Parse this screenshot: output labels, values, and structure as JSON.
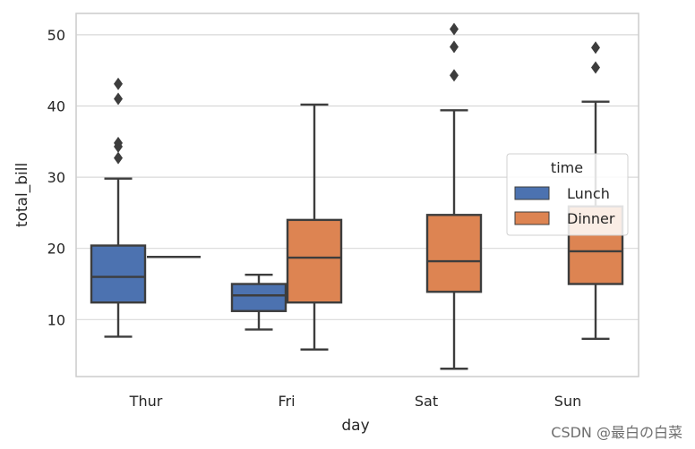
{
  "chart_data": {
    "type": "box",
    "xlabel": "day",
    "ylabel": "total_bill",
    "categories": [
      "Thur",
      "Fri",
      "Sat",
      "Sun"
    ],
    "ylim": [
      2,
      53
    ],
    "yticks": [
      10,
      20,
      30,
      40,
      50
    ],
    "grid": true,
    "legend": {
      "title": "time",
      "placement": "center-right"
    },
    "series": [
      {
        "name": "Lunch",
        "color": "#4c72b0",
        "boxes": [
          {
            "category": "Thur",
            "whisker_low": 7.6,
            "q1": 12.4,
            "median": 16.0,
            "q3": 20.4,
            "whisker_high": 29.8,
            "outliers": [
              32.7,
              34.3,
              34.8,
              41.0,
              43.1
            ]
          },
          {
            "category": "Fri",
            "whisker_low": 8.6,
            "q1": 11.2,
            "median": 13.4,
            "q3": 15.0,
            "whisker_high": 16.3,
            "outliers": []
          }
        ]
      },
      {
        "name": "Dinner",
        "color": "#dd8452",
        "boxes": [
          {
            "category": "Thur",
            "whisker_low": 18.8,
            "q1": 18.8,
            "median": 18.8,
            "q3": 18.8,
            "whisker_high": 18.8,
            "outliers": []
          },
          {
            "category": "Fri",
            "whisker_low": 5.8,
            "q1": 12.4,
            "median": 18.7,
            "q3": 24.0,
            "whisker_high": 40.2,
            "outliers": []
          },
          {
            "category": "Sat",
            "whisker_low": 3.1,
            "q1": 13.9,
            "median": 18.2,
            "q3": 24.7,
            "whisker_high": 39.4,
            "outliers": [
              44.3,
              48.3,
              50.8
            ]
          },
          {
            "category": "Sun",
            "whisker_low": 7.3,
            "q1": 15.0,
            "median": 19.6,
            "q3": 25.9,
            "whisker_high": 40.6,
            "outliers": [
              45.4,
              48.2
            ]
          }
        ]
      }
    ]
  },
  "watermark": "CSDN @最白の白菜"
}
